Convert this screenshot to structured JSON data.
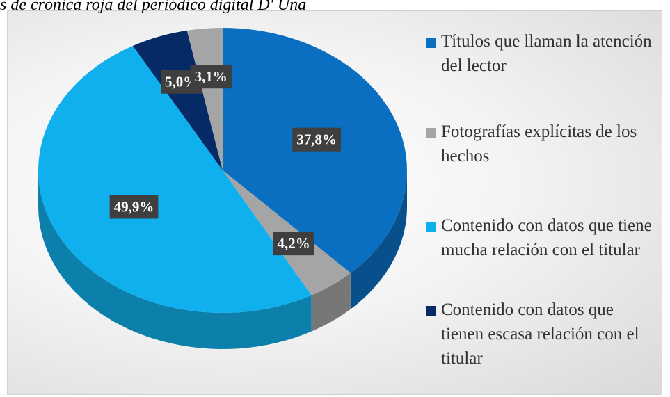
{
  "chart_data": {
    "type": "pie",
    "title": "s de crónica roja del periódico digital D' Una",
    "categories": [
      "Títulos que llaman la atención del lector",
      "Fotografías explícitas de los hechos",
      "Contenido con datos que tiene mucha relación con el titular",
      "Contenido con datos que tienen escasa relación con el titular",
      null
    ],
    "values": [
      37.8,
      4.2,
      49.9,
      5.0,
      3.1
    ],
    "value_labels": [
      "37,8%",
      "4,2%",
      "49,9%",
      "5,0%",
      "3,1%"
    ],
    "colors": [
      "#0b6fc1",
      "#a5a5a5",
      "#10b0ee",
      "#062a66",
      "#a5a5a5"
    ],
    "legend": "right"
  }
}
